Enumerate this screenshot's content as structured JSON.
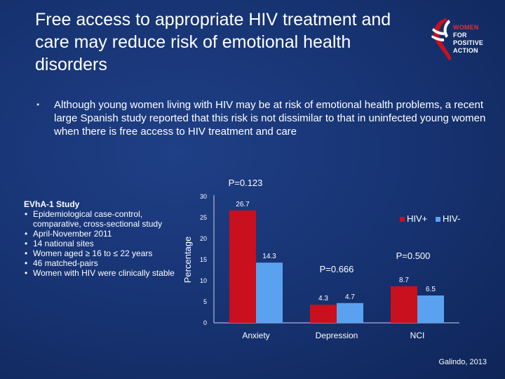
{
  "slide": {
    "title": "Free access to appropriate HIV treatment and care may reduce risk of emotional health disorders",
    "logo": {
      "lines": [
        "WOMEN",
        "FOR",
        "POSITIVE",
        "ACTION"
      ],
      "colors": {
        "red": "#e03131",
        "white": "#ffffff"
      }
    },
    "bullet": "Although young women living with HIV may be at risk of emotional health problems, a recent large Spanish study reported that this risk is not dissimilar to that in uninfected young women when there is free access to HIV treatment and care",
    "study": {
      "title": "EVhA-1 Study",
      "items": [
        "Epidemiological case-control, comparative, cross-sectional study",
        "April-November 2011",
        "14 national sites",
        "Women aged ≥ 16 to  ≤ 22 years",
        "46 matched-pairs",
        "Women with HIV were clinically stable"
      ]
    },
    "source": "Galindo, 2013"
  },
  "chart_data": {
    "type": "bar",
    "categories": [
      "Anxiety",
      "Depression",
      "NCI"
    ],
    "series": [
      {
        "name": "HIV+",
        "values": [
          26.7,
          4.3,
          8.7
        ],
        "color": "#c8101e"
      },
      {
        "name": "HIV-",
        "values": [
          14.3,
          4.7,
          6.5
        ],
        "color": "#5aa2f0"
      }
    ],
    "ylabel": "Percentage",
    "ylim": [
      0,
      30
    ],
    "yticks": [
      0,
      5,
      10,
      15,
      20,
      25,
      30
    ],
    "p_values": [
      "P=0.123",
      "P=0.666",
      "P=0.500"
    ],
    "legend": "top-right",
    "grid": false
  }
}
